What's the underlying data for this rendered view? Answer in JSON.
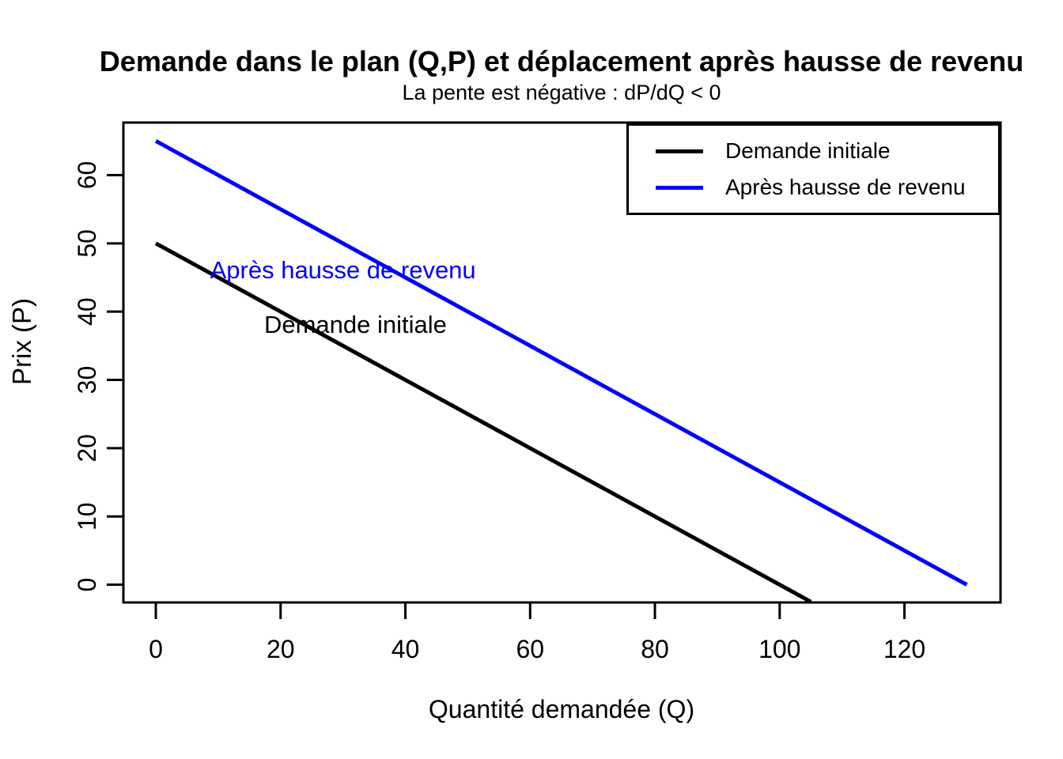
{
  "chart_data": {
    "type": "line",
    "title": "Demande dans le plan (Q,P) et déplacement après hausse de revenu",
    "subtitle": "La pente est négative : dP/dQ < 0",
    "xlabel": "Quantité demandée (Q)",
    "ylabel": "Prix (P)",
    "xlim": [
      -5.2,
      135.4
    ],
    "ylim": [
      -2.6,
      67.7
    ],
    "x_ticks": [
      0,
      20,
      40,
      60,
      80,
      100,
      120
    ],
    "y_ticks": [
      0,
      10,
      20,
      30,
      40,
      50,
      60
    ],
    "grid": false,
    "frame": true,
    "background": "#ffffff",
    "axis_color": "#000000",
    "series": [
      {
        "name": "Demande initiale",
        "color": "#000000",
        "points": [
          [
            0,
            50
          ],
          [
            105,
            -2.5
          ]
        ]
      },
      {
        "name": "Après hausse de revenu",
        "color": "#0000ff",
        "points": [
          [
            0,
            65
          ],
          [
            130,
            0
          ]
        ]
      }
    ],
    "legend": {
      "position": "topright",
      "entries": [
        {
          "label": "Demande initiale",
          "color": "#000000"
        },
        {
          "label": "Après hausse de revenu",
          "color": "#0000ff"
        }
      ]
    },
    "annotations": [
      {
        "text": "Après hausse de revenu",
        "x": 30,
        "y": 46,
        "color": "#0000ff"
      },
      {
        "text": "Demande initiale",
        "x": 32,
        "y": 38,
        "color": "#000000"
      }
    ]
  }
}
